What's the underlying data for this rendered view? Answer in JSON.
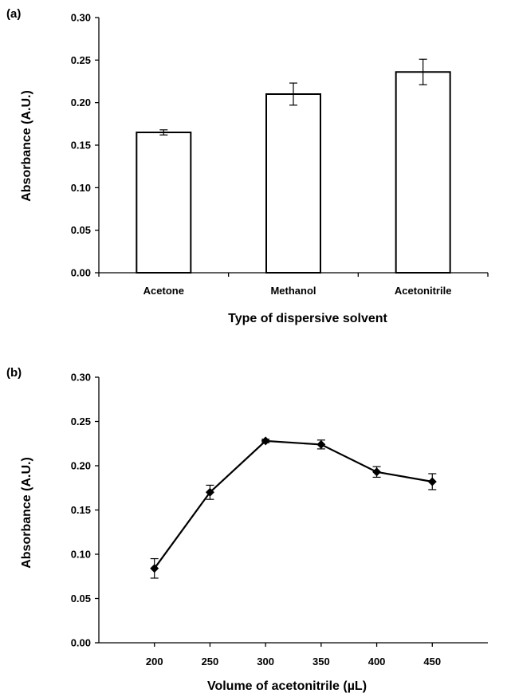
{
  "chart_data": [
    {
      "panel": "(a)",
      "type": "bar",
      "categories": [
        "Acetone",
        "Methanol",
        "Acetonitrile"
      ],
      "values": [
        0.165,
        0.21,
        0.236
      ],
      "errors": [
        0.003,
        0.013,
        0.015
      ],
      "xlabel": "Type of dispersive solvent",
      "ylabel": "Absorbance (A.U.)",
      "ylim": [
        0,
        0.3
      ],
      "yticks": [
        "0.00",
        "0.05",
        "0.10",
        "0.15",
        "0.20",
        "0.25",
        "0.30"
      ],
      "grid": false,
      "legend": "none"
    },
    {
      "panel": "(b)",
      "type": "line",
      "x": [
        200,
        250,
        300,
        350,
        400,
        450
      ],
      "values": [
        0.084,
        0.17,
        0.228,
        0.224,
        0.193,
        0.182
      ],
      "errors": [
        0.011,
        0.008,
        0.002,
        0.005,
        0.006,
        0.009
      ],
      "xticks": [
        "200",
        "250",
        "300",
        "350",
        "400",
        "450"
      ],
      "xlabel": "Volume of acetonitrile (µL)",
      "ylabel": "Absorbance (A.U.)",
      "xlim": [
        150,
        500
      ],
      "ylim": [
        0,
        0.3
      ],
      "yticks": [
        "0.00",
        "0.05",
        "0.10",
        "0.15",
        "0.20",
        "0.25",
        "0.30"
      ],
      "marker": "diamond",
      "grid": false,
      "legend": "none"
    }
  ]
}
